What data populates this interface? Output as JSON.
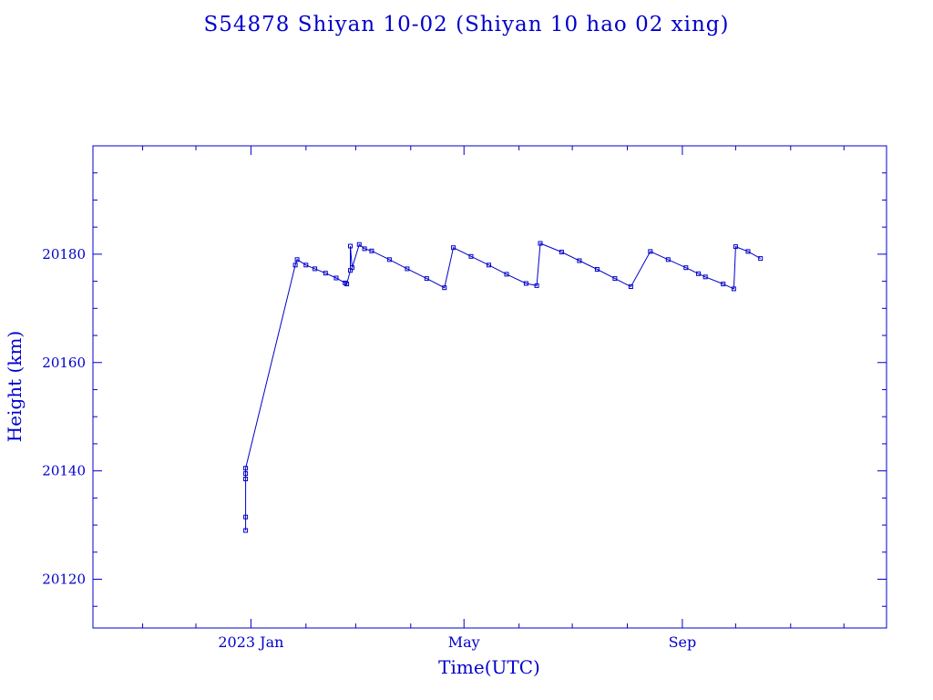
{
  "chart_data": {
    "type": "line",
    "title": "S54878 Shiyan 10-02  (Shiyan 10 hao 02 xing)",
    "xlabel": "Time(UTC)",
    "ylabel": "Height (km)",
    "xlim": [
      "2022-10-04",
      "2023-12-25"
    ],
    "ylim": [
      20111,
      20200
    ],
    "x_ticks": [
      {
        "date": "2023-01-01",
        "label": "2023 Jan"
      },
      {
        "date": "2023-05-01",
        "label": "May"
      },
      {
        "date": "2023-09-01",
        "label": "Sep"
      }
    ],
    "y_ticks": [
      20120,
      20140,
      20160,
      20180
    ],
    "grid": false,
    "color": "#0000cc",
    "series": [
      {
        "name": "Height",
        "points": [
          [
            "2022-12-29",
            20129.0
          ],
          [
            "2022-12-29",
            20131.5
          ],
          [
            "2022-12-29",
            20138.5
          ],
          [
            "2022-12-29",
            20139.5
          ],
          [
            "2022-12-29",
            20140.5
          ],
          [
            "2023-01-26",
            20178.0
          ],
          [
            "2023-01-27",
            20179.0
          ],
          [
            "2023-02-01",
            20178.0
          ],
          [
            "2023-02-06",
            20177.3
          ],
          [
            "2023-02-12",
            20176.5
          ],
          [
            "2023-02-18",
            20175.6
          ],
          [
            "2023-02-23",
            20174.7
          ],
          [
            "2023-02-24",
            20174.5
          ],
          [
            "2023-02-26",
            20177.0
          ],
          [
            "2023-02-26",
            20181.5
          ],
          [
            "2023-02-27",
            20177.5
          ],
          [
            "2023-03-03",
            20181.8
          ],
          [
            "2023-03-06",
            20181.0
          ],
          [
            "2023-03-10",
            20180.6
          ],
          [
            "2023-03-20",
            20179.0
          ],
          [
            "2023-03-30",
            20177.3
          ],
          [
            "2023-04-10",
            20175.5
          ],
          [
            "2023-04-20",
            20173.8
          ],
          [
            "2023-04-25",
            20181.2
          ],
          [
            "2023-05-05",
            20179.6
          ],
          [
            "2023-05-15",
            20178.0
          ],
          [
            "2023-05-25",
            20176.3
          ],
          [
            "2023-06-05",
            20174.6
          ],
          [
            "2023-06-11",
            20174.2
          ],
          [
            "2023-06-13",
            20182.0
          ],
          [
            "2023-06-25",
            20180.4
          ],
          [
            "2023-07-05",
            20178.8
          ],
          [
            "2023-07-15",
            20177.2
          ],
          [
            "2023-07-25",
            20175.5
          ],
          [
            "2023-08-03",
            20174.0
          ],
          [
            "2023-08-14",
            20180.5
          ],
          [
            "2023-08-24",
            20179.0
          ],
          [
            "2023-09-03",
            20177.5
          ],
          [
            "2023-09-10",
            20176.4
          ],
          [
            "2023-09-14",
            20175.8
          ],
          [
            "2023-09-24",
            20174.5
          ],
          [
            "2023-09-30",
            20173.6
          ],
          [
            "2023-10-01",
            20181.4
          ],
          [
            "2023-10-08",
            20180.5
          ],
          [
            "2023-10-15",
            20179.2
          ]
        ]
      }
    ]
  }
}
